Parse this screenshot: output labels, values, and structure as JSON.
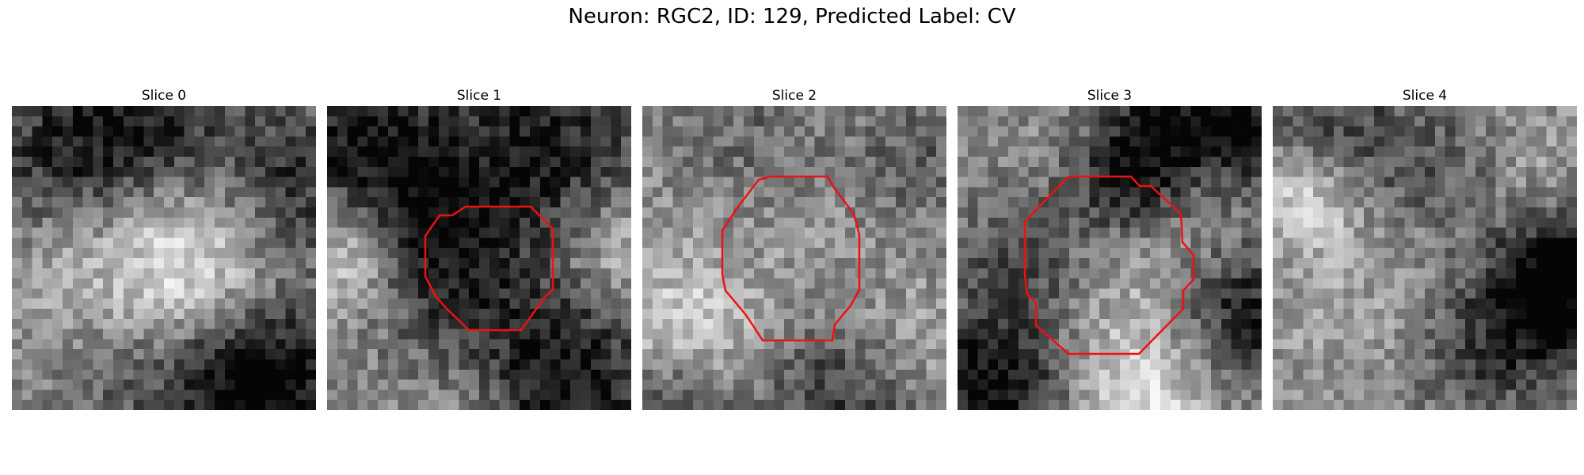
{
  "figure": {
    "title": "Neuron: RGC2, ID: 129, Predicted Label: CV"
  },
  "colors": {
    "contour": "#ee1111",
    "background": "#ffffff"
  },
  "panels": [
    {
      "title": "Slice 0",
      "has_contour": false,
      "seed": 11
    },
    {
      "title": "Slice 1",
      "has_contour": true,
      "seed": 23
    },
    {
      "title": "Slice 2",
      "has_contour": true,
      "seed": 37
    },
    {
      "title": "Slice 3",
      "has_contour": true,
      "seed": 53
    },
    {
      "title": "Slice 4",
      "has_contour": false,
      "seed": 71
    }
  ]
}
